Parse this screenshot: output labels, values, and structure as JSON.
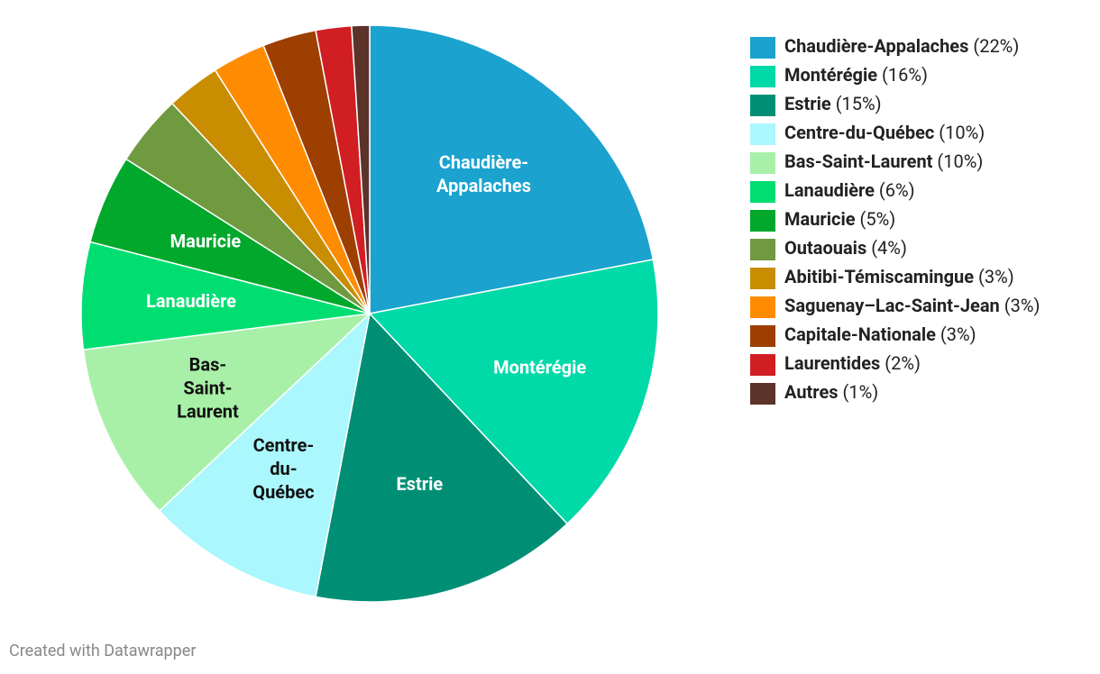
{
  "chart_data": {
    "type": "pie",
    "categories": [
      "Chaudière-Appalaches",
      "Montérégie",
      "Estrie",
      "Centre-du-Québec",
      "Bas-Saint-Laurent",
      "Lanaudière",
      "Mauricie",
      "Outaouais",
      "Abitibi-Témiscamingue",
      "Saguenay–Lac-Saint-Jean",
      "Capitale-Nationale",
      "Laurentides",
      "Autres"
    ],
    "values": [
      22,
      16,
      15,
      10,
      10,
      6,
      5,
      4,
      3,
      3,
      3,
      2,
      1
    ],
    "value_labels": [
      "(22%)",
      "(16%)",
      "(15%)",
      "(10%)",
      "(10%)",
      "(6%)",
      "(5%)",
      "(4%)",
      "(3%)",
      "(3%)",
      "(3%)",
      "(2%)",
      "(1%)"
    ],
    "colors": [
      "#1ba2cf",
      "#00d9a8",
      "#008f75",
      "#aaf7fd",
      "#a8f0a8",
      "#00de72",
      "#00a82b",
      "#6f9a3f",
      "#c88d00",
      "#ff8c00",
      "#9c3f00",
      "#d11e23",
      "#5c3328"
    ],
    "legend": "right",
    "credit": "Created with Datawrapper"
  }
}
